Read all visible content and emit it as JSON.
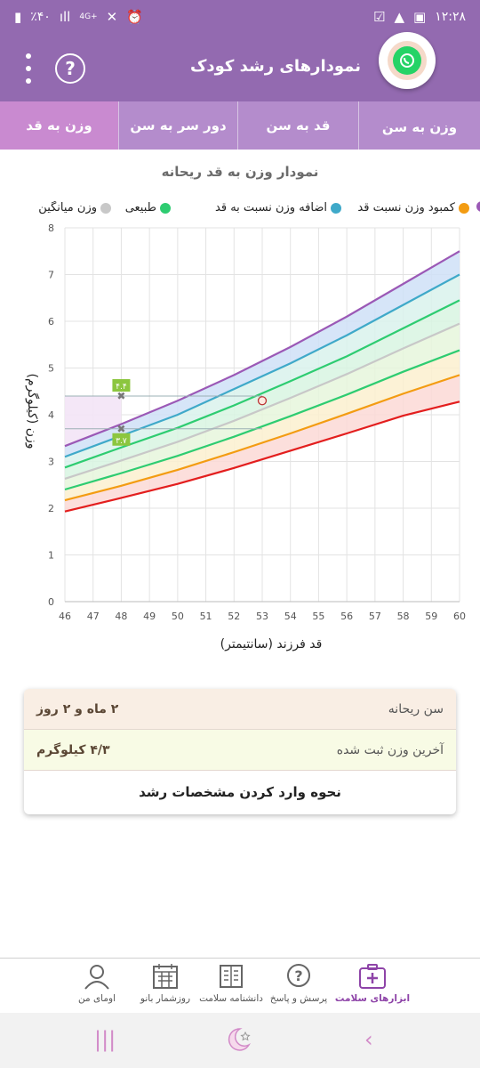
{
  "status_bar": {
    "time": "۱۲:۲۸",
    "battery": "٪۴۰",
    "network": "4G+"
  },
  "app_bar": {
    "title": "نمودارهای رشد کودک",
    "help_label": "?"
  },
  "tabs": [
    {
      "label": "وزن به سن",
      "active": false
    },
    {
      "label": "قد به سن",
      "active": false
    },
    {
      "label": "دور سر به سن",
      "active": false
    },
    {
      "label": "وزن به قد",
      "active": true
    }
  ],
  "chart_title": "نمودار وزن به قد ریحانه",
  "legend": [
    {
      "label": "کمبود وزن نسبت قد",
      "color": "#f39c12"
    },
    {
      "label": "اضافه وزن نسبت به قد",
      "color": "#3fa9c9"
    },
    {
      "label": "طبیعی",
      "color": "#2ecc71"
    },
    {
      "label": "وزن میانگین",
      "color": "#c8c8c8"
    }
  ],
  "legend_partial_color": "#9b59b6",
  "chart_data": {
    "type": "line",
    "xlabel": "قد فرزند (سانتیمتر)",
    "ylabel": "وزن (کیلوگرم)",
    "xlim": [
      46,
      60
    ],
    "ylim": [
      0,
      8
    ],
    "xticks": [
      "46",
      "47",
      "48",
      "49",
      "50",
      "51",
      "52",
      "53",
      "54",
      "55",
      "56",
      "57",
      "58",
      "59",
      "60"
    ],
    "yticks": [
      "0",
      "1",
      "2",
      "3",
      "4",
      "5",
      "6",
      "7",
      "8"
    ],
    "x": [
      46,
      48,
      50,
      52,
      54,
      56,
      58,
      60
    ],
    "series": [
      {
        "color": "#9b59b6",
        "values": [
          3.33,
          3.8,
          4.3,
          4.85,
          5.45,
          6.1,
          6.8,
          7.5
        ]
      },
      {
        "color": "#3fa9c9",
        "values": [
          3.1,
          3.55,
          4.0,
          4.55,
          5.1,
          5.7,
          6.35,
          7.0
        ]
      },
      {
        "color": "#2ecc71",
        "values": [
          2.87,
          3.3,
          3.72,
          4.2,
          4.72,
          5.25,
          5.85,
          6.45
        ]
      },
      {
        "color": "#c8c8c8",
        "values": [
          2.63,
          3.02,
          3.42,
          3.87,
          4.36,
          4.87,
          5.42,
          5.95
        ]
      },
      {
        "color": "#2ecc71",
        "values": [
          2.4,
          2.75,
          3.12,
          3.53,
          3.97,
          4.43,
          4.92,
          5.38
        ]
      },
      {
        "color": "#f39c12",
        "values": [
          2.17,
          2.48,
          2.82,
          3.2,
          3.6,
          4.02,
          4.45,
          4.85
        ]
      },
      {
        "color": "#e31e1e",
        "values": [
          1.93,
          2.22,
          2.52,
          2.86,
          3.23,
          3.6,
          3.98,
          4.28
        ]
      }
    ],
    "markers": [
      {
        "x": 48,
        "y": 4.4,
        "label": "۴.۴"
      },
      {
        "x": 48,
        "y": 3.7,
        "label": "۳.۷"
      }
    ],
    "current_point": {
      "x": 53,
      "y": 4.3
    }
  },
  "info": {
    "age_label": "سن ریحانه",
    "age_value": "۲ ماه و ۲ روز",
    "weight_label": "آخرین وزن ثبت شده",
    "weight_value": "۴/۳ کیلوگرم",
    "guide_link": "نحوه وارد کردن مشخصات رشد"
  },
  "bottom_nav": [
    {
      "label": "ابزارهای سلامت",
      "icon": "health-kit-icon",
      "active": true
    },
    {
      "label": "پرسش و پاسخ",
      "icon": "question-bubble-icon",
      "active": false
    },
    {
      "label": "دانشنامه سلامت",
      "icon": "encyclopedia-icon",
      "active": false
    },
    {
      "label": "روزشمار بانو",
      "icon": "calendar-icon",
      "active": false
    },
    {
      "label": "اومای من",
      "icon": "profile-icon",
      "active": false
    }
  ]
}
